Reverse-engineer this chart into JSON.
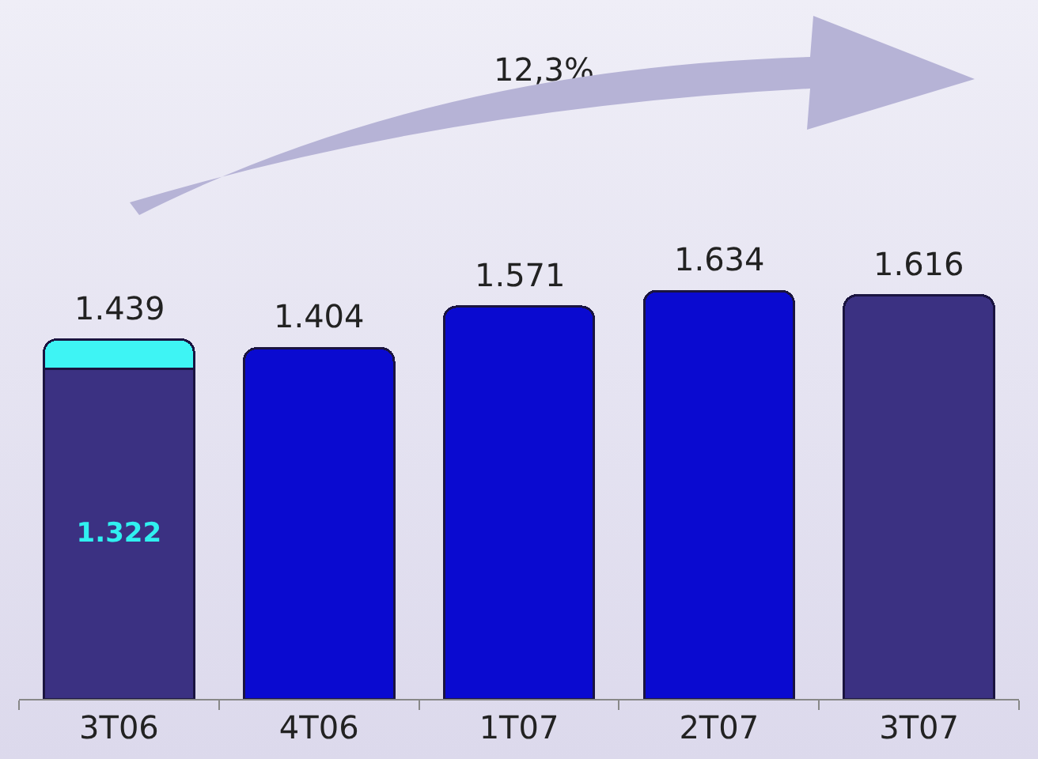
{
  "chart_data": {
    "type": "bar",
    "stacked": true,
    "categories": [
      "3T06",
      "4T06",
      "1T07",
      "2T07",
      "3T07"
    ],
    "series": [
      {
        "colors": [
          "#3b3182",
          "#0a0ad0",
          "#0a0ad0",
          "#0a0ad0",
          "#3b3182"
        ],
        "values": [
          1322,
          1404,
          1571,
          1634,
          1616
        ],
        "value_labels": [
          "1.322",
          null,
          null,
          null,
          null
        ]
      },
      {
        "color": "#3ef4f4",
        "values": [
          117,
          null,
          null,
          null,
          null
        ]
      }
    ],
    "totals": [
      "1.439",
      "1.404",
      "1.571",
      "1.634",
      "1.616"
    ],
    "annotations": [
      "12,3%"
    ]
  }
}
